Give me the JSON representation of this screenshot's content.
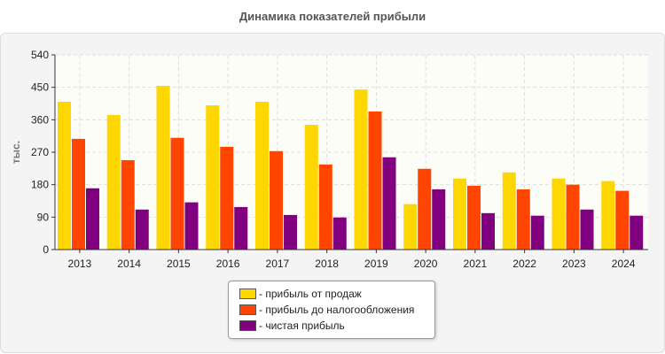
{
  "chart_data": {
    "type": "bar",
    "title": "Динамика показателей прибыли",
    "ylabel": "тыс.",
    "xlabel": "",
    "ylim": [
      0,
      540
    ],
    "yticks": [
      0,
      90,
      180,
      270,
      360,
      450,
      540
    ],
    "categories": [
      "2013",
      "2014",
      "2015",
      "2016",
      "2017",
      "2018",
      "2019",
      "2020",
      "2021",
      "2022",
      "2023",
      "2024"
    ],
    "series": [
      {
        "name": "- прибыль от продаж",
        "color": "#FFD700",
        "values": [
          410,
          373,
          454,
          400,
          410,
          346,
          444,
          126,
          197,
          214,
          197,
          190
        ]
      },
      {
        "name": "- прибыль до налогообложения",
        "color": "#FF4500",
        "values": [
          307,
          248,
          310,
          285,
          273,
          236,
          383,
          224,
          177,
          167,
          180,
          163
        ]
      },
      {
        "name": "- чистая прибыль",
        "color": "#800080",
        "values": [
          170,
          111,
          131,
          118,
          96,
          89,
          256,
          167,
          101,
          94,
          111,
          94
        ]
      }
    ],
    "legend_position": "bottom",
    "grid": true
  }
}
